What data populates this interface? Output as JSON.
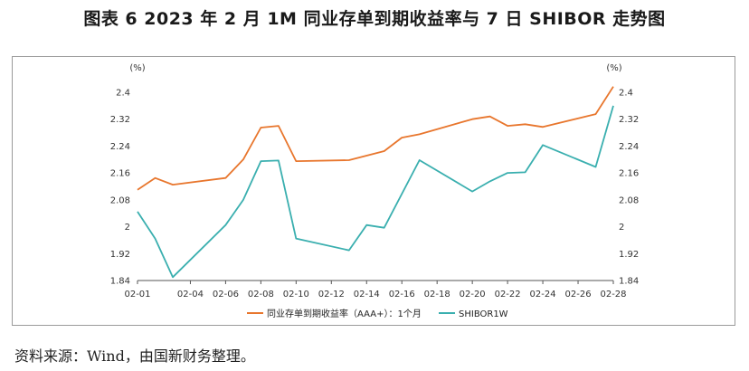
{
  "title": "图表 6  2023 年 2 月 1M 同业存单到期收益率与 7 日 SHIBOR 走势图",
  "source": "资料来源：Wind，由国新财务整理。",
  "chart_data": {
    "type": "line",
    "title": "图表 6  2023 年 2 月 1M 同业存单到期收益率与 7 日 SHIBOR 走势图",
    "y_unit_left": "(%)",
    "y_unit_right": "(%)",
    "ylim": [
      1.84,
      2.4
    ],
    "yticks": [
      1.84,
      1.92,
      2,
      2.08,
      2.16,
      2.24,
      2.32,
      2.4
    ],
    "ytick_labels": [
      "1.84",
      "1.92",
      "2",
      "2.08",
      "2.16",
      "2.24",
      "2.32",
      "2.4"
    ],
    "xlim": [
      1,
      28
    ],
    "xticks": [
      1,
      4,
      6,
      8,
      10,
      12,
      14,
      16,
      18,
      20,
      22,
      24,
      26,
      28
    ],
    "xtick_labels": [
      "02-01",
      "02-04",
      "02-06",
      "02-08",
      "02-10",
      "02-12",
      "02-14",
      "02-16",
      "02-18",
      "02-20",
      "02-22",
      "02-24",
      "02-26",
      "02-28"
    ],
    "grid": false,
    "legend_position": "bottom",
    "series": [
      {
        "name": "同业存单到期收益率（AAA+）：1个月",
        "color": "#E8762D",
        "points": [
          [
            1,
            2.11
          ],
          [
            2,
            2.145
          ],
          [
            3,
            2.125
          ],
          [
            6,
            2.145
          ],
          [
            7,
            2.2
          ],
          [
            8,
            2.295
          ],
          [
            9,
            2.3
          ],
          [
            10,
            2.195
          ],
          [
            13,
            2.198
          ],
          [
            15,
            2.225
          ],
          [
            16,
            2.265
          ],
          [
            17,
            2.275
          ],
          [
            20,
            2.32
          ],
          [
            21,
            2.328
          ],
          [
            22,
            2.3
          ],
          [
            23,
            2.305
          ],
          [
            24,
            2.297
          ],
          [
            27,
            2.335
          ],
          [
            28,
            2.417
          ]
        ]
      },
      {
        "name": "SHIBOR1W",
        "color": "#3AAFAF",
        "points": [
          [
            1,
            2.045
          ],
          [
            2,
            1.965
          ],
          [
            3,
            1.85
          ],
          [
            6,
            2.005
          ],
          [
            7,
            2.08
          ],
          [
            8,
            2.195
          ],
          [
            9,
            2.197
          ],
          [
            10,
            1.965
          ],
          [
            13,
            1.93
          ],
          [
            14,
            2.005
          ],
          [
            15,
            1.997
          ],
          [
            17,
            2.198
          ],
          [
            20,
            2.105
          ],
          [
            21,
            2.135
          ],
          [
            22,
            2.16
          ],
          [
            23,
            2.162
          ],
          [
            24,
            2.243
          ],
          [
            27,
            2.178
          ],
          [
            28,
            2.36
          ]
        ]
      }
    ]
  }
}
